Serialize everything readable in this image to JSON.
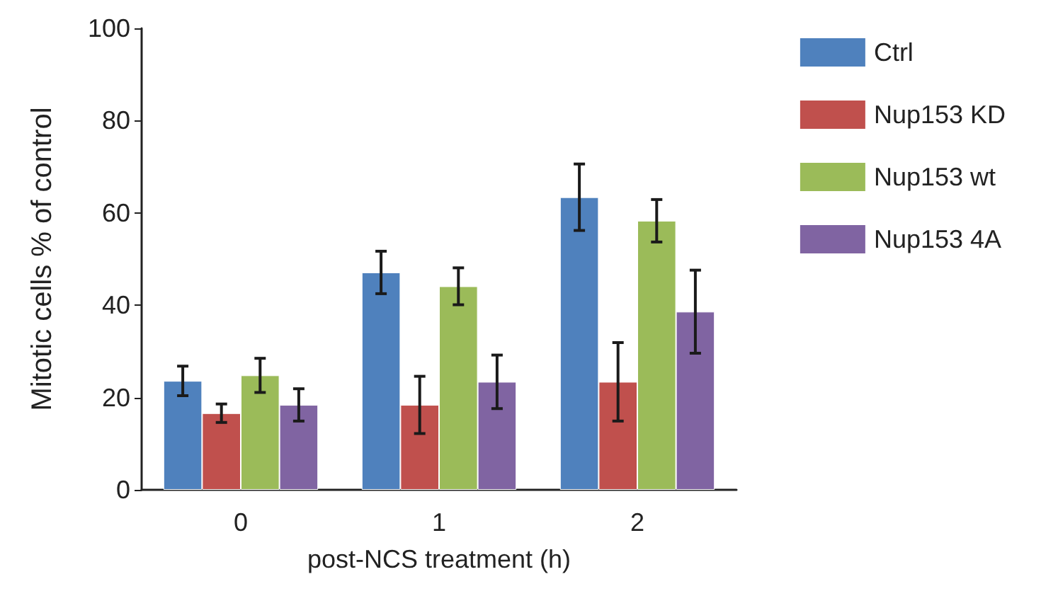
{
  "chart_data": {
    "type": "bar",
    "xlabel": "post-NCS treatment (h)",
    "ylabel": "Mitotic cells % of control",
    "categories": [
      "0",
      "1",
      "2"
    ],
    "series": [
      {
        "name": "Ctrl",
        "color": "#4f81bd",
        "values": [
          23.6,
          47.1,
          63.4
        ],
        "errors": [
          3.2,
          4.6,
          7.2
        ]
      },
      {
        "name": "Nup153 KD",
        "color": "#c0504d",
        "values": [
          16.6,
          18.4,
          23.4
        ],
        "errors": [
          2,
          6.2,
          8.5
        ]
      },
      {
        "name": "Nup153 wt",
        "color": "#9bbb59",
        "values": [
          24.8,
          44.1,
          58.3
        ],
        "errors": [
          3.7,
          4,
          4.6
        ]
      },
      {
        "name": "Nup153 4A",
        "color": "#8064a2",
        "values": [
          18.4,
          23.4,
          38.6
        ],
        "errors": [
          3.5,
          5.8,
          9
        ]
      }
    ],
    "ylim": [
      0,
      100
    ],
    "yticks": [
      0,
      20,
      40,
      60,
      80,
      100
    ],
    "grid": false,
    "legend": "top right"
  }
}
